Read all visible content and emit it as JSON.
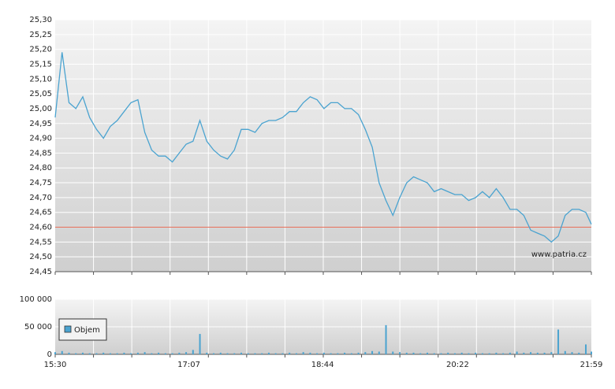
{
  "chart_data": [
    {
      "type": "line",
      "color": "#4aa3d0",
      "ylim": [
        24.45,
        25.3
      ],
      "xlim": [
        "15:30",
        "21:59"
      ],
      "yticks": [
        {
          "value": 24.45,
          "label": "24,45"
        },
        {
          "value": 24.5,
          "label": "24,50"
        },
        {
          "value": 24.55,
          "label": "24,55"
        },
        {
          "value": 24.6,
          "label": "24,60"
        },
        {
          "value": 24.65,
          "label": "24,65"
        },
        {
          "value": 24.7,
          "label": "24,70"
        },
        {
          "value": 24.75,
          "label": "24,75"
        },
        {
          "value": 24.8,
          "label": "24,80"
        },
        {
          "value": 24.85,
          "label": "24,85"
        },
        {
          "value": 24.9,
          "label": "24,90"
        },
        {
          "value": 24.95,
          "label": "24,95"
        },
        {
          "value": 25.0,
          "label": "25,00"
        },
        {
          "value": 25.05,
          "label": "25,05"
        },
        {
          "value": 25.1,
          "label": "25,10"
        },
        {
          "value": 25.15,
          "label": "25,15"
        },
        {
          "value": 25.2,
          "label": "25,20"
        },
        {
          "value": 25.25,
          "label": "25,25"
        },
        {
          "value": 25.3,
          "label": "25,30"
        }
      ],
      "reference_line": {
        "value": 24.6,
        "color": "#e8705a"
      },
      "watermark": "www.patria.cz",
      "grid": true,
      "x": [
        "15:30",
        "15:35",
        "15:40",
        "15:45",
        "15:50",
        "15:55",
        "16:00",
        "16:05",
        "16:10",
        "16:15",
        "16:20",
        "16:25",
        "16:30",
        "16:35",
        "16:40",
        "16:45",
        "16:50",
        "16:55",
        "17:00",
        "17:05",
        "17:10",
        "17:15",
        "17:20",
        "17:25",
        "17:30",
        "17:35",
        "17:40",
        "17:45",
        "17:50",
        "17:55",
        "18:00",
        "18:05",
        "18:10",
        "18:15",
        "18:20",
        "18:25",
        "18:30",
        "18:35",
        "18:40",
        "18:45",
        "18:50",
        "18:55",
        "19:00",
        "19:05",
        "19:10",
        "19:15",
        "19:20",
        "19:25",
        "19:30",
        "19:35",
        "19:40",
        "19:45",
        "19:50",
        "19:55",
        "20:00",
        "20:05",
        "20:10",
        "20:15",
        "20:20",
        "20:25",
        "20:30",
        "20:35",
        "20:40",
        "20:45",
        "20:50",
        "20:55",
        "21:00",
        "21:05",
        "21:10",
        "21:15",
        "21:20",
        "21:25",
        "21:30",
        "21:35",
        "21:40",
        "21:45",
        "21:50",
        "21:55",
        "21:59"
      ],
      "values": [
        24.97,
        25.19,
        25.02,
        25.0,
        25.04,
        24.97,
        24.93,
        24.9,
        24.94,
        24.96,
        24.99,
        25.02,
        25.03,
        24.92,
        24.86,
        24.84,
        24.84,
        24.82,
        24.85,
        24.88,
        24.89,
        24.96,
        24.89,
        24.86,
        24.84,
        24.83,
        24.86,
        24.93,
        24.93,
        24.92,
        24.95,
        24.96,
        24.96,
        24.97,
        24.99,
        24.99,
        25.02,
        25.04,
        25.03,
        25.0,
        25.02,
        25.02,
        25.0,
        25.0,
        24.98,
        24.93,
        24.87,
        24.75,
        24.69,
        24.64,
        24.7,
        24.75,
        24.77,
        24.76,
        24.75,
        24.72,
        24.73,
        24.72,
        24.71,
        24.71,
        24.69,
        24.7,
        24.72,
        24.7,
        24.73,
        24.7,
        24.66,
        24.66,
        24.64,
        24.59,
        24.58,
        24.57,
        24.55,
        24.57,
        24.64,
        24.66,
        24.66,
        24.65,
        24.61
      ]
    },
    {
      "type": "bar",
      "ylim": [
        0,
        100000
      ],
      "xlim": [
        "15:30",
        "21:59"
      ],
      "yticks": [
        0,
        {
          "value": 50000,
          "label": "50 000"
        },
        {
          "value": 100000,
          "label": "100 000"
        }
      ],
      "xticks": [
        "15:30",
        "17:07",
        "18:44",
        "20:22",
        "21:59"
      ],
      "grid": true,
      "x": [
        "15:30",
        "15:35",
        "15:40",
        "15:45",
        "15:50",
        "15:55",
        "16:00",
        "16:05",
        "16:10",
        "16:15",
        "16:20",
        "16:25",
        "16:30",
        "16:35",
        "16:40",
        "16:45",
        "16:50",
        "16:55",
        "17:00",
        "17:05",
        "17:10",
        "17:15",
        "17:20",
        "17:25",
        "17:30",
        "17:35",
        "17:40",
        "17:45",
        "17:50",
        "17:55",
        "18:00",
        "18:05",
        "18:10",
        "18:15",
        "18:20",
        "18:25",
        "18:30",
        "18:35",
        "18:40",
        "18:45",
        "18:50",
        "18:55",
        "19:00",
        "19:05",
        "19:10",
        "19:15",
        "19:20",
        "19:25",
        "19:30",
        "19:35",
        "19:40",
        "19:45",
        "19:50",
        "19:55",
        "20:00",
        "20:05",
        "20:10",
        "20:15",
        "20:20",
        "20:25",
        "20:30",
        "20:35",
        "20:40",
        "20:45",
        "20:50",
        "20:55",
        "21:00",
        "21:05",
        "21:10",
        "21:15",
        "21:20",
        "21:25",
        "21:30",
        "21:35",
        "21:40",
        "21:45",
        "21:50",
        "21:55",
        "21:59"
      ],
      "series": [
        {
          "name": "Objem",
          "color": "#4aa3d0",
          "values": [
            4000,
            6000,
            3000,
            2000,
            3000,
            2000,
            2000,
            3000,
            2000,
            2000,
            3000,
            2000,
            3000,
            4000,
            2000,
            3000,
            2000,
            2000,
            3000,
            4000,
            8000,
            37000,
            3000,
            2000,
            3000,
            2000,
            2000,
            3000,
            2000,
            2000,
            2000,
            3000,
            2000,
            2000,
            3000,
            2000,
            4000,
            3000,
            2000,
            3000,
            2000,
            2000,
            3000,
            2000,
            3000,
            4000,
            6000,
            5000,
            53000,
            5000,
            4000,
            3000,
            3000,
            2000,
            3000,
            2000,
            2000,
            3000,
            2000,
            3000,
            2000,
            3000,
            2000,
            2000,
            3000,
            2000,
            3000,
            5000,
            3000,
            4000,
            3000,
            3000,
            4000,
            45000,
            6000,
            4000,
            3000,
            18000,
            5000
          ]
        }
      ]
    }
  ]
}
